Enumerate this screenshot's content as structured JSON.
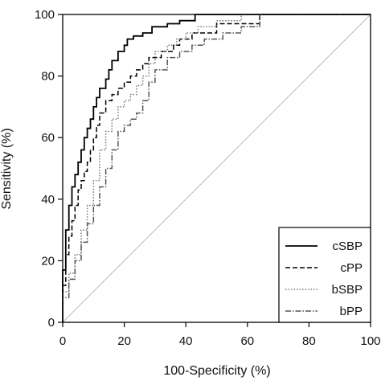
{
  "chart_data": {
    "type": "line",
    "title": "",
    "xlabel": "100-Specificity (%)",
    "ylabel": "Sensitivity (%)",
    "xlim": [
      0,
      100
    ],
    "ylim": [
      0,
      100
    ],
    "xticks": [
      "0",
      "20",
      "40",
      "60",
      "80",
      "100"
    ],
    "yticks": [
      "0",
      "20",
      "40",
      "60",
      "80",
      "100"
    ],
    "grid": false,
    "legend_position": "bottom-right",
    "reference_line": {
      "x": [
        0,
        100
      ],
      "y": [
        0,
        100
      ],
      "color": "#bbbbbb"
    },
    "series": [
      {
        "name": "cSBP",
        "style": "solid",
        "color": "#000000",
        "x": [
          0,
          0,
          1,
          1,
          2,
          2,
          3,
          3,
          4,
          4,
          5,
          5,
          6,
          6,
          7,
          7,
          8,
          8,
          9,
          9,
          10,
          10,
          11,
          11,
          12,
          12,
          14,
          14,
          15,
          15,
          16,
          16,
          18,
          18,
          20,
          20,
          21,
          21,
          23,
          23,
          26,
          26,
          29,
          29,
          34,
          34,
          38,
          38,
          43,
          43,
          100
        ],
        "y": [
          0,
          17,
          17,
          30,
          30,
          38,
          38,
          44,
          44,
          48,
          48,
          52,
          52,
          56,
          56,
          60,
          60,
          63,
          63,
          66,
          66,
          70,
          70,
          73,
          73,
          76,
          76,
          79,
          79,
          82,
          82,
          85,
          85,
          88,
          88,
          90,
          90,
          92,
          92,
          93,
          93,
          94,
          94,
          96,
          96,
          97,
          97,
          98,
          98,
          100,
          100
        ]
      },
      {
        "name": "cPP",
        "style": "dashed",
        "color": "#000000",
        "x": [
          0,
          0,
          1,
          1,
          2,
          2,
          3,
          3,
          4,
          4,
          5,
          5,
          6,
          6,
          7,
          7,
          8,
          8,
          9,
          9,
          10,
          10,
          11,
          11,
          12,
          12,
          14,
          14,
          16,
          16,
          18,
          18,
          20,
          20,
          22,
          22,
          24,
          24,
          26,
          26,
          28,
          28,
          32,
          32,
          36,
          36,
          38,
          38,
          42,
          42,
          50,
          50,
          64,
          64,
          100
        ],
        "y": [
          0,
          12,
          12,
          22,
          22,
          28,
          28,
          33,
          33,
          38,
          38,
          43,
          43,
          46,
          46,
          49,
          49,
          52,
          52,
          56,
          56,
          60,
          60,
          64,
          64,
          68,
          68,
          72,
          72,
          74,
          74,
          76,
          76,
          78,
          78,
          80,
          80,
          82,
          82,
          84,
          84,
          86,
          86,
          88,
          88,
          90,
          90,
          92,
          92,
          94,
          94,
          97,
          97,
          100,
          100
        ]
      },
      {
        "name": "bSBP",
        "style": "dotted",
        "color": "#777777",
        "x": [
          0,
          0,
          2,
          2,
          4,
          4,
          6,
          6,
          8,
          8,
          10,
          10,
          12,
          12,
          14,
          14,
          16,
          16,
          18,
          18,
          20,
          20,
          22,
          22,
          24,
          24,
          26,
          26,
          28,
          28,
          30,
          30,
          34,
          34,
          37,
          37,
          40,
          40,
          44,
          44,
          50,
          50,
          58,
          58,
          100
        ],
        "y": [
          0,
          10,
          10,
          16,
          16,
          22,
          22,
          30,
          30,
          38,
          38,
          46,
          46,
          56,
          56,
          62,
          62,
          66,
          66,
          70,
          70,
          72,
          72,
          74,
          74,
          77,
          77,
          80,
          80,
          84,
          84,
          88,
          88,
          90,
          90,
          92,
          92,
          94,
          94,
          96,
          96,
          98,
          98,
          100,
          100
        ]
      },
      {
        "name": "bPP",
        "style": "dashdot",
        "color": "#555555",
        "x": [
          0,
          0,
          2,
          2,
          4,
          4,
          6,
          6,
          8,
          8,
          10,
          10,
          12,
          12,
          14,
          14,
          16,
          16,
          18,
          18,
          20,
          20,
          22,
          22,
          24,
          24,
          26,
          26,
          28,
          28,
          30,
          30,
          34,
          34,
          38,
          38,
          42,
          42,
          46,
          46,
          52,
          52,
          58,
          58,
          64,
          64,
          100
        ],
        "y": [
          0,
          8,
          8,
          14,
          14,
          20,
          20,
          26,
          26,
          32,
          32,
          38,
          38,
          44,
          44,
          50,
          50,
          56,
          56,
          62,
          62,
          64,
          64,
          66,
          66,
          68,
          68,
          72,
          72,
          78,
          78,
          82,
          82,
          86,
          86,
          88,
          88,
          90,
          90,
          92,
          92,
          94,
          94,
          96,
          96,
          100,
          100
        ]
      }
    ]
  }
}
